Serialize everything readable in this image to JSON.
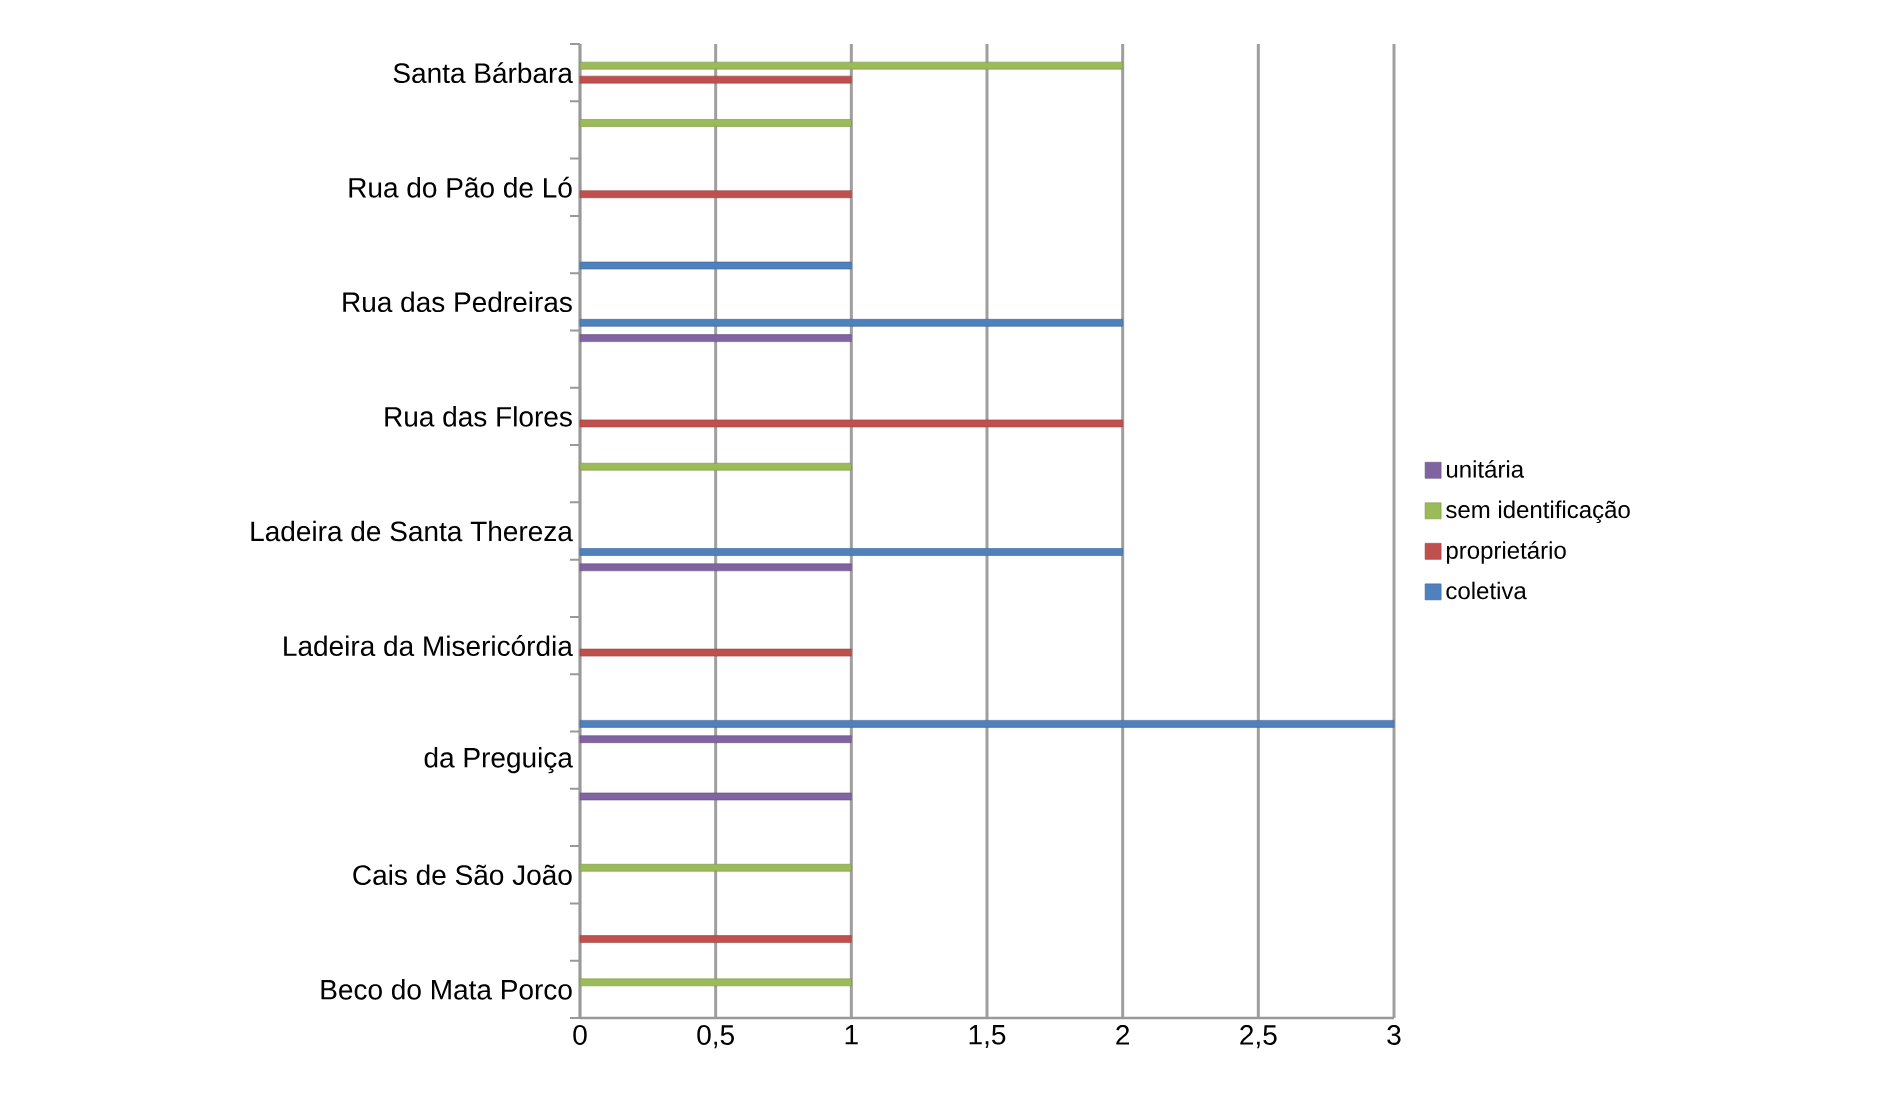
{
  "chart_data": {
    "type": "bar",
    "orientation": "horizontal",
    "categories": [
      "Santa Bárbara",
      null,
      "Rua do Pão de Ló",
      null,
      "Rua das Pedreiras",
      null,
      "Rua das Flores",
      null,
      "Ladeira de Santa Thereza",
      null,
      "Ladeira da Misericórdia",
      null,
      "da Preguiça",
      null,
      "Cais de São João",
      null,
      "Beco do Mata Porco"
    ],
    "series": [
      {
        "name": "coletiva",
        "color": "#4f81bd",
        "values": [
          null,
          null,
          null,
          1,
          2,
          null,
          null,
          null,
          2,
          null,
          null,
          3,
          null,
          null,
          null,
          null,
          null
        ]
      },
      {
        "name": "proprietário",
        "color": "#c0504d",
        "values": [
          1,
          null,
          1,
          null,
          null,
          null,
          2,
          null,
          null,
          null,
          1,
          null,
          null,
          null,
          null,
          1,
          null
        ]
      },
      {
        "name": "sem identificação",
        "color": "#9bbb59",
        "values": [
          2,
          1,
          null,
          null,
          null,
          null,
          null,
          1,
          null,
          null,
          null,
          null,
          null,
          null,
          1,
          null,
          1
        ]
      },
      {
        "name": "unitária",
        "color": "#8064a2",
        "values": [
          null,
          null,
          null,
          null,
          null,
          1,
          null,
          null,
          null,
          1,
          null,
          null,
          1,
          1,
          null,
          null,
          null
        ]
      }
    ],
    "xlim": [
      0,
      3
    ],
    "xticks": [
      0,
      {
        "value": 0.5,
        "label": "0,5"
      },
      1,
      {
        "value": 1.5,
        "label": "1,5"
      },
      2,
      {
        "value": 2.5,
        "label": "2,5"
      },
      3
    ],
    "grid": "x",
    "legend": "right"
  }
}
